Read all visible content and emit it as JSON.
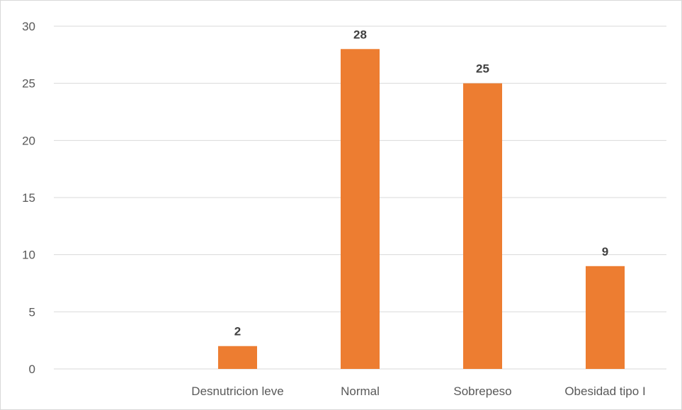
{
  "chart_data": {
    "type": "bar",
    "categories": [
      "",
      "Desnutricion leve",
      "Normal",
      "Sobrepeso",
      "Obesidad tipo I"
    ],
    "values": [
      null,
      2,
      28,
      25,
      9
    ],
    "data_labels": [
      "",
      "2",
      "28",
      "25",
      "9"
    ],
    "title": "",
    "xlabel": "",
    "ylabel": "",
    "ylim": [
      0,
      30
    ],
    "yticks": [
      0,
      5,
      10,
      15,
      20,
      25,
      30
    ],
    "ytick_labels": [
      "0",
      "5",
      "10",
      "15",
      "20",
      "25",
      "30"
    ],
    "grid": true,
    "legend": "none",
    "colors": {
      "bar": "#ed7d31",
      "grid": "#d9d9d9",
      "axis_text": "#595959",
      "data_label": "#404040"
    }
  }
}
